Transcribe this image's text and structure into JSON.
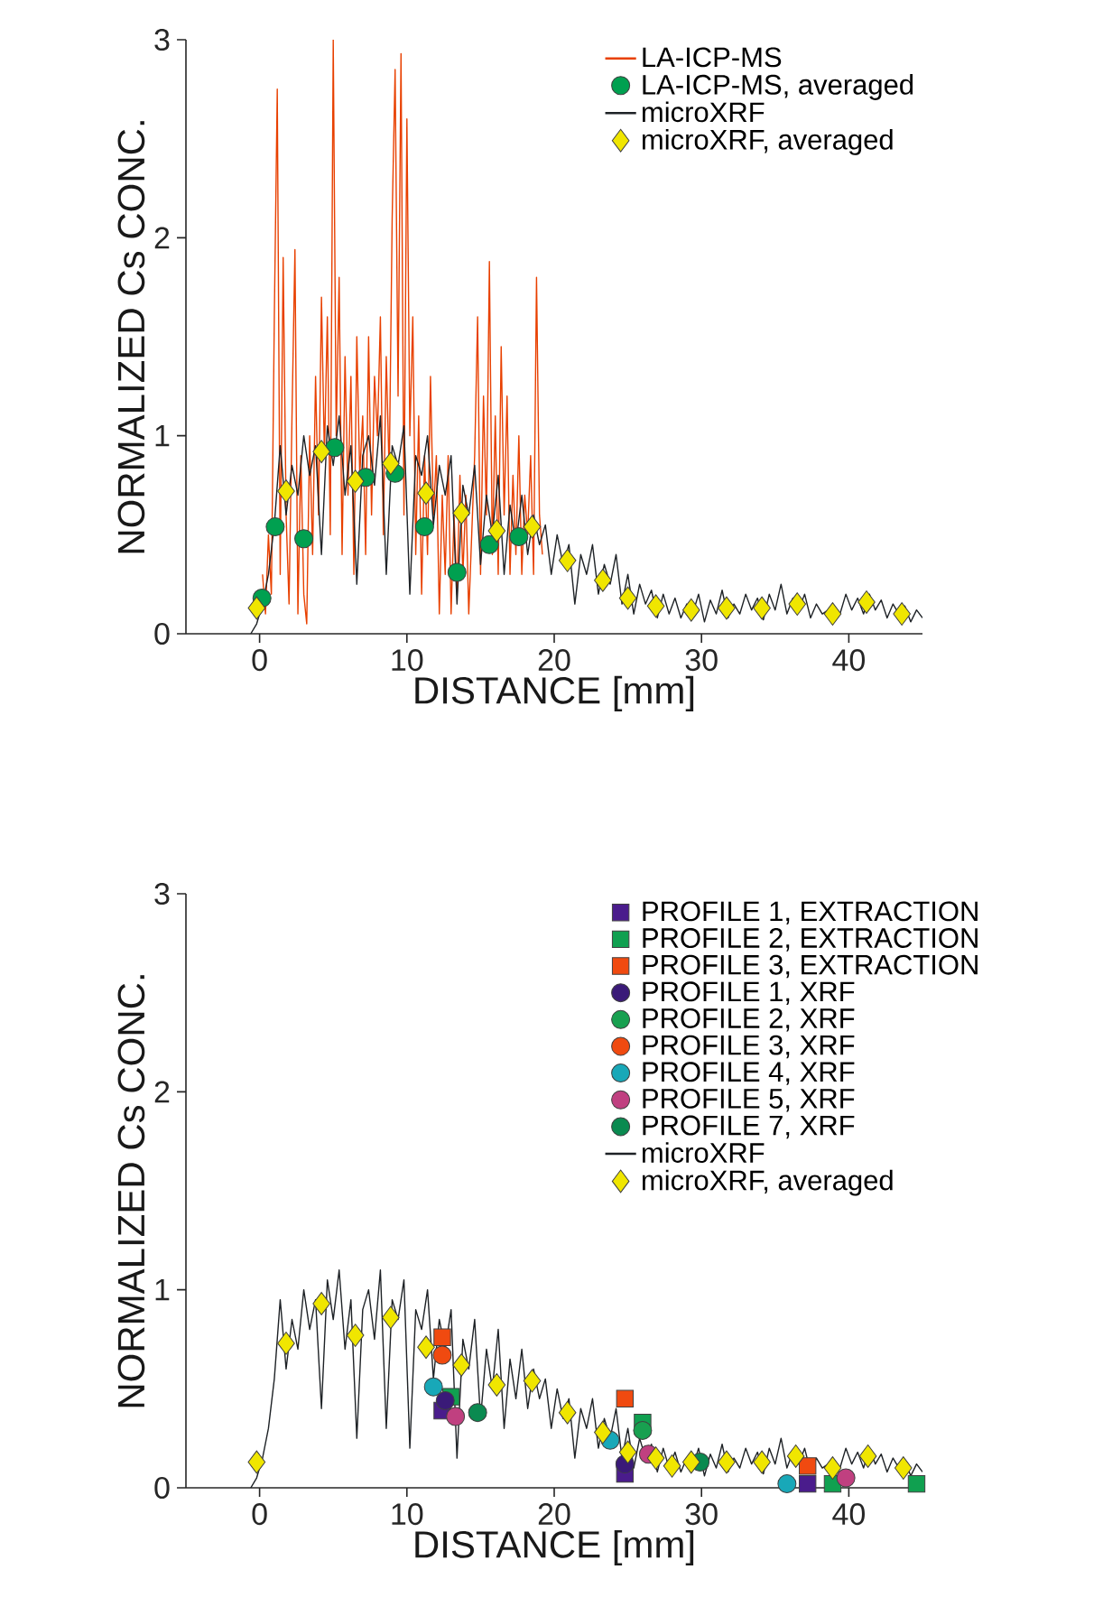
{
  "chart_data": [
    {
      "type": "line",
      "xlabel": "DISTANCE [mm]",
      "ylabel": "NORMALIZED Cs CONC.",
      "xlim": [
        -5,
        45
      ],
      "ylim": [
        0,
        3
      ],
      "xticks": [
        0,
        10,
        20,
        30,
        40
      ],
      "yticks": [
        0,
        1,
        2,
        3
      ],
      "legend": "top right",
      "series": [
        {
          "name": "LA-ICP-MS",
          "type": "line",
          "color": "#e84000",
          "x": [
            0.2,
            0.4,
            0.6,
            0.8,
            1.0,
            1.2,
            1.4,
            1.6,
            1.8,
            2.0,
            2.2,
            2.4,
            2.6,
            2.8,
            3.0,
            3.2,
            3.4,
            3.6,
            3.8,
            4.0,
            4.2,
            4.4,
            4.6,
            4.8,
            5.0,
            5.2,
            5.4,
            5.6,
            5.8,
            6.0,
            6.2,
            6.4,
            6.6,
            6.8,
            7.0,
            7.2,
            7.4,
            7.6,
            7.8,
            8.0,
            8.2,
            8.4,
            8.6,
            8.8,
            9.0,
            9.2,
            9.4,
            9.6,
            9.8,
            10.0,
            10.2,
            10.4,
            10.6,
            10.8,
            11.0,
            11.2,
            11.4,
            11.6,
            11.8,
            12.0,
            12.2,
            12.4,
            12.6,
            12.8,
            13.0,
            13.2,
            13.4,
            13.6,
            13.8,
            14.0,
            14.2,
            14.4,
            14.6,
            14.8,
            15.0,
            15.2,
            15.4,
            15.6,
            15.8,
            16.0,
            16.2,
            16.4,
            16.6,
            16.8,
            17.0,
            17.2,
            17.4,
            17.6,
            17.8,
            18.0,
            18.2,
            18.4,
            18.6,
            18.8,
            19.0,
            19.2
          ],
          "values": [
            0.3,
            0.1,
            0.5,
            0.2,
            1.6,
            2.75,
            0.3,
            1.9,
            0.6,
            0.15,
            1.1,
            1.94,
            0.1,
            0.9,
            0.2,
            0.05,
            1.0,
            0.4,
            1.3,
            0.6,
            1.7,
            0.9,
            1.6,
            0.5,
            3.0,
            1.0,
            1.8,
            0.4,
            1.4,
            0.7,
            1.3,
            0.3,
            1.5,
            0.8,
            1.1,
            0.4,
            1.5,
            0.6,
            1.3,
            1.0,
            1.6,
            0.5,
            1.4,
            0.8,
            2.1,
            2.85,
            1.2,
            2.93,
            0.6,
            2.6,
            1.0,
            1.6,
            0.4,
            1.1,
            0.2,
            0.9,
            0.4,
            1.3,
            0.6,
            0.9,
            0.1,
            0.7,
            0.3,
            0.9,
            0.1,
            0.6,
            0.2,
            0.8,
            0.3,
            0.7,
            0.1,
            0.5,
            0.9,
            1.6,
            0.3,
            1.2,
            0.6,
            1.88,
            0.4,
            1.1,
            0.3,
            1.45,
            0.6,
            1.2,
            0.3,
            0.8,
            0.4,
            1.0,
            0.3,
            0.7,
            0.5,
            0.9,
            0.3,
            1.8,
            0.6,
            0.4
          ]
        },
        {
          "name": "LA-ICP-MS, averaged",
          "type": "scatter",
          "marker": "circle",
          "color": "#00a050",
          "x": [
            0.16,
            1.06,
            3.0,
            5.1,
            7.2,
            9.2,
            11.2,
            13.4,
            15.6,
            17.6
          ],
          "values": [
            0.18,
            0.54,
            0.48,
            0.94,
            0.79,
            0.81,
            0.54,
            0.31,
            0.45,
            0.49
          ]
        },
        {
          "name": "microXRF",
          "type": "line",
          "color": "#1e2226",
          "x": [
            -0.6,
            -0.2,
            0.2,
            0.6,
            1.0,
            1.4,
            1.8,
            2.2,
            2.6,
            3.0,
            3.4,
            3.8,
            4.2,
            4.6,
            5.0,
            5.4,
            5.8,
            6.2,
            6.6,
            7.0,
            7.4,
            7.8,
            8.2,
            8.6,
            9.0,
            9.4,
            9.8,
            10.2,
            10.6,
            11.0,
            11.4,
            11.8,
            12.2,
            12.6,
            13.0,
            13.4,
            13.8,
            14.2,
            14.6,
            15.0,
            15.4,
            15.8,
            16.2,
            16.6,
            17.0,
            17.4,
            17.8,
            18.2,
            18.6,
            19.0,
            19.4,
            19.8,
            20.2,
            20.6,
            21.0,
            21.4,
            21.8,
            22.2,
            22.6,
            23.0,
            23.4,
            23.8,
            24.2,
            24.6,
            25.0,
            25.4,
            25.8,
            26.2,
            26.6,
            27.0,
            27.4,
            27.8,
            28.2,
            28.6,
            29.0,
            29.4,
            29.8,
            30.2,
            30.6,
            31.0,
            31.4,
            31.8,
            32.2,
            32.6,
            33.0,
            33.4,
            33.8,
            34.2,
            34.6,
            35.0,
            35.4,
            35.8,
            36.2,
            36.6,
            37.0,
            37.4,
            37.8,
            38.2,
            38.6,
            39.0,
            39.4,
            39.8,
            40.2,
            40.6,
            41.0,
            41.4,
            41.8,
            42.2,
            42.6,
            43.0,
            43.4,
            43.8,
            44.2,
            44.6,
            45.0
          ],
          "values": [
            0.0,
            0.05,
            0.15,
            0.3,
            0.55,
            0.95,
            0.6,
            0.85,
            0.7,
            1.0,
            0.8,
            0.95,
            0.4,
            1.05,
            0.85,
            1.1,
            0.7,
            0.95,
            0.25,
            0.9,
            1.0,
            0.75,
            1.1,
            0.3,
            0.95,
            0.85,
            1.05,
            0.2,
            0.9,
            0.8,
            1.0,
            0.55,
            0.85,
            0.7,
            0.9,
            0.15,
            0.75,
            0.6,
            0.85,
            0.35,
            0.7,
            0.5,
            0.8,
            0.3,
            0.65,
            0.45,
            0.7,
            0.4,
            0.6,
            0.45,
            0.55,
            0.3,
            0.5,
            0.35,
            0.45,
            0.15,
            0.4,
            0.3,
            0.45,
            0.2,
            0.35,
            0.25,
            0.4,
            0.15,
            0.3,
            0.1,
            0.25,
            0.15,
            0.22,
            0.08,
            0.2,
            0.1,
            0.18,
            0.08,
            0.15,
            0.1,
            0.2,
            0.06,
            0.17,
            0.1,
            0.22,
            0.08,
            0.15,
            0.1,
            0.2,
            0.12,
            0.18,
            0.07,
            0.2,
            0.12,
            0.25,
            0.1,
            0.18,
            0.12,
            0.2,
            0.08,
            0.15,
            0.1,
            0.12,
            0.06,
            0.1,
            0.2,
            0.12,
            0.18,
            0.1,
            0.2,
            0.12,
            0.17,
            0.08,
            0.15,
            0.1,
            0.14,
            0.06,
            0.12,
            0.08
          ]
        },
        {
          "name": "microXRF, averaged",
          "type": "scatter",
          "marker": "diamond",
          "color": "#f0e600",
          "x": [
            -0.2,
            1.8,
            4.2,
            6.5,
            8.9,
            11.3,
            13.7,
            16.1,
            18.5,
            20.9,
            23.3,
            25.0,
            26.9,
            29.3,
            31.7,
            34.1,
            36.5,
            38.9,
            41.2,
            43.6
          ],
          "values": [
            0.13,
            0.72,
            0.92,
            0.77,
            0.86,
            0.71,
            0.61,
            0.52,
            0.54,
            0.37,
            0.27,
            0.18,
            0.14,
            0.12,
            0.13,
            0.13,
            0.15,
            0.1,
            0.16,
            0.1
          ]
        }
      ]
    },
    {
      "type": "line",
      "xlabel": "DISTANCE [mm]",
      "ylabel": "NORMALIZED Cs CONC.",
      "xlim": [
        -5,
        45
      ],
      "ylim": [
        0,
        3
      ],
      "xticks": [
        0,
        10,
        20,
        30,
        40
      ],
      "yticks": [
        0,
        1,
        2,
        3
      ],
      "legend": "top right",
      "series": [
        {
          "name": "PROFILE 1, EXTRACTION",
          "type": "scatter",
          "marker": "square",
          "color": "#4a1c8c",
          "x": [
            12.4,
            24.8,
            37.2
          ],
          "values": [
            0.39,
            0.07,
            0.02
          ]
        },
        {
          "name": "PROFILE 2, EXTRACTION",
          "type": "scatter",
          "marker": "square",
          "color": "#10a050",
          "x": [
            13.0,
            26.0,
            38.9,
            44.6
          ],
          "values": [
            0.46,
            0.33,
            0.02,
            0.02
          ]
        },
        {
          "name": "PROFILE 3, EXTRACTION",
          "type": "scatter",
          "marker": "square",
          "color": "#f04a10",
          "x": [
            12.4,
            24.8,
            37.2
          ],
          "values": [
            0.76,
            0.45,
            0.11
          ]
        },
        {
          "name": "PROFILE 1, XRF",
          "type": "scatter",
          "marker": "circle",
          "color": "#3a1a78",
          "x": [
            12.6,
            24.8
          ],
          "values": [
            0.44,
            0.12
          ]
        },
        {
          "name": "PROFILE 2, XRF",
          "type": "scatter",
          "marker": "circle",
          "color": "#18a050",
          "x": [
            26.0
          ],
          "values": [
            0.29
          ]
        },
        {
          "name": "PROFILE 3, XRF",
          "type": "scatter",
          "marker": "circle",
          "color": "#f04a10",
          "x": [
            12.4
          ],
          "values": [
            0.67
          ]
        },
        {
          "name": "PROFILE 4, XRF",
          "type": "scatter",
          "marker": "circle",
          "color": "#18a8b8",
          "x": [
            11.8,
            23.8,
            35.8
          ],
          "values": [
            0.51,
            0.24,
            0.02
          ]
        },
        {
          "name": "PROFILE 5, XRF",
          "type": "scatter",
          "marker": "circle",
          "color": "#c04080",
          "x": [
            13.3,
            26.4,
            39.8
          ],
          "values": [
            0.36,
            0.17,
            0.05
          ]
        },
        {
          "name": "PROFILE 7, XRF",
          "type": "scatter",
          "marker": "circle",
          "color": "#0a8a50",
          "x": [
            14.8,
            29.9
          ],
          "values": [
            0.38,
            0.13
          ]
        },
        {
          "name": "microXRF",
          "type": "line",
          "color": "#1e2226",
          "x": [
            -0.6,
            -0.2,
            0.2,
            0.6,
            1.0,
            1.4,
            1.8,
            2.2,
            2.6,
            3.0,
            3.4,
            3.8,
            4.2,
            4.6,
            5.0,
            5.4,
            5.8,
            6.2,
            6.6,
            7.0,
            7.4,
            7.8,
            8.2,
            8.6,
            9.0,
            9.4,
            9.8,
            10.2,
            10.6,
            11.0,
            11.4,
            11.8,
            12.2,
            12.6,
            13.0,
            13.4,
            13.8,
            14.2,
            14.6,
            15.0,
            15.4,
            15.8,
            16.2,
            16.6,
            17.0,
            17.4,
            17.8,
            18.2,
            18.6,
            19.0,
            19.4,
            19.8,
            20.2,
            20.6,
            21.0,
            21.4,
            21.8,
            22.2,
            22.6,
            23.0,
            23.4,
            23.8,
            24.2,
            24.6,
            25.0,
            25.4,
            25.8,
            26.2,
            26.6,
            27.0,
            27.4,
            27.8,
            28.2,
            28.6,
            29.0,
            29.4,
            29.8,
            30.2,
            30.6,
            31.0,
            31.4,
            31.8,
            32.2,
            32.6,
            33.0,
            33.4,
            33.8,
            34.2,
            34.6,
            35.0,
            35.4,
            35.8,
            36.2,
            36.6,
            37.0,
            37.4,
            37.8,
            38.2,
            38.6,
            39.0,
            39.4,
            39.8,
            40.2,
            40.6,
            41.0,
            41.4,
            41.8,
            42.2,
            42.6,
            43.0,
            43.4,
            43.8,
            44.2,
            44.6,
            45.0
          ],
          "values": [
            0.0,
            0.05,
            0.15,
            0.3,
            0.55,
            0.95,
            0.6,
            0.85,
            0.7,
            1.0,
            0.8,
            0.95,
            0.4,
            1.05,
            0.85,
            1.1,
            0.7,
            0.95,
            0.25,
            0.9,
            1.0,
            0.75,
            1.1,
            0.3,
            0.95,
            0.85,
            1.05,
            0.2,
            0.9,
            0.8,
            1.0,
            0.55,
            0.85,
            0.7,
            0.9,
            0.15,
            0.75,
            0.6,
            0.85,
            0.35,
            0.7,
            0.5,
            0.8,
            0.3,
            0.65,
            0.45,
            0.7,
            0.4,
            0.6,
            0.45,
            0.55,
            0.3,
            0.5,
            0.35,
            0.45,
            0.15,
            0.4,
            0.3,
            0.45,
            0.2,
            0.35,
            0.25,
            0.4,
            0.15,
            0.3,
            0.1,
            0.25,
            0.15,
            0.22,
            0.08,
            0.2,
            0.1,
            0.18,
            0.08,
            0.15,
            0.1,
            0.2,
            0.06,
            0.17,
            0.1,
            0.22,
            0.08,
            0.15,
            0.1,
            0.2,
            0.12,
            0.18,
            0.07,
            0.2,
            0.12,
            0.25,
            0.1,
            0.18,
            0.12,
            0.2,
            0.08,
            0.15,
            0.1,
            0.12,
            0.06,
            0.1,
            0.2,
            0.12,
            0.18,
            0.1,
            0.2,
            0.12,
            0.17,
            0.08,
            0.15,
            0.1,
            0.14,
            0.06,
            0.12,
            0.08
          ]
        },
        {
          "name": "microXRF, averaged",
          "type": "scatter",
          "marker": "diamond",
          "color": "#f0e600",
          "x": [
            -0.2,
            1.8,
            4.2,
            6.5,
            8.9,
            11.3,
            13.7,
            16.1,
            18.5,
            20.9,
            23.3,
            25.0,
            26.9,
            28.0,
            29.3,
            31.7,
            34.1,
            36.4,
            38.9,
            41.3,
            43.7
          ],
          "values": [
            0.13,
            0.73,
            0.93,
            0.77,
            0.86,
            0.71,
            0.62,
            0.52,
            0.54,
            0.38,
            0.28,
            0.18,
            0.15,
            0.11,
            0.13,
            0.13,
            0.13,
            0.16,
            0.1,
            0.16,
            0.1
          ]
        }
      ]
    }
  ]
}
